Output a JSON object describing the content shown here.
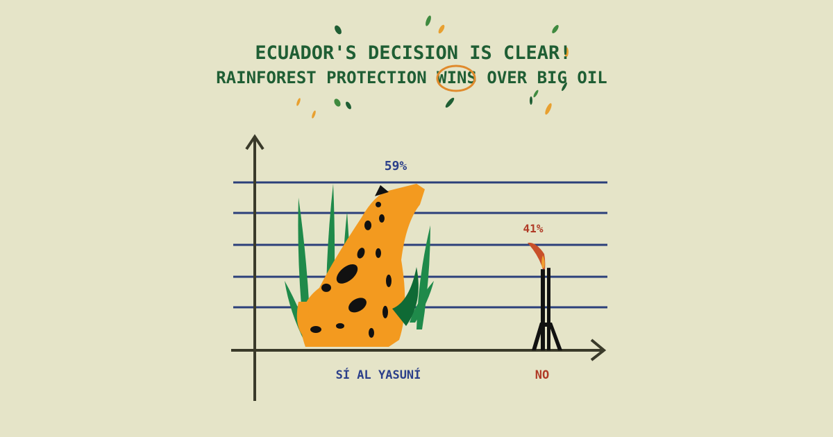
{
  "chart_data": {
    "type": "bar",
    "title": "ECUADOR'S DECISION IS CLEAR!",
    "subtitle": "RAINFOREST PROTECTION WINS OVER BIG OIL",
    "title_highlight": "WINS",
    "categories": [
      "SÍ AL YASUNÍ",
      "NO"
    ],
    "values": [
      59,
      41
    ],
    "data_labels": [
      "59%",
      "41%"
    ],
    "ylim": [
      0,
      70
    ],
    "grid": true,
    "bar_marks": [
      "jaguar-in-rainforest",
      "oil-derrick-with-flare"
    ],
    "colors": {
      "background": "#e5e4c8",
      "title": "#1f5e34",
      "highlight": "#e08a2c",
      "grid": "#2b3f7a",
      "axis": "#3a3a2a",
      "yes_label": "#2b3f8a",
      "no_label": "#b03a26",
      "jaguar": "#f39a1f",
      "leaf": "#1f8a4a",
      "derrick": "#111111"
    }
  }
}
